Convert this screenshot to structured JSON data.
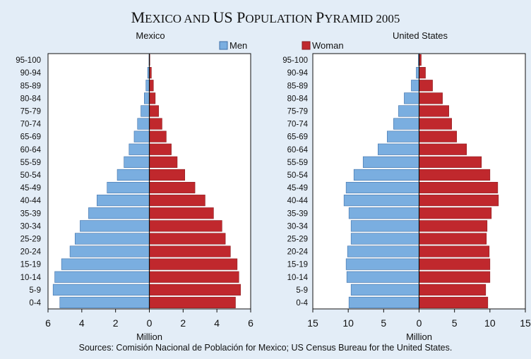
{
  "title": {
    "first_big": "M",
    "first_small": "EXICO AND ",
    "second_big": "US P",
    "second_small": "OPULATION ",
    "third_big": "P",
    "third_small": "YRAMID 2005"
  },
  "source": "Sources: Comisión Nacional de Población for Mexico; US Census Bureau for the United States.",
  "colors": {
    "men": "#7aaee0",
    "men_edge": "#3d6fa8",
    "woman": "#c0282d",
    "woman_edge": "#8a1a1e",
    "background": "#e3edf7",
    "plot_bg": "#ffffff"
  },
  "chart_data": [
    {
      "type": "bar",
      "orientation": "horizontal",
      "layout": "population-pyramid",
      "title": "Mexico",
      "xlabel": "Million",
      "categories": [
        "95-100",
        "90-94",
        "85-89",
        "80-84",
        "75-79",
        "70-74",
        "65-69",
        "60-64",
        "55-59",
        "50-54",
        "45-49",
        "40-44",
        "35-39",
        "30-34",
        "25-29",
        "20-24",
        "15-19",
        "10-14",
        "5-9",
        "0-4"
      ],
      "xlim": [
        -6,
        6
      ],
      "x_ticks": [
        -6,
        -4,
        -2,
        0,
        2,
        4,
        6
      ],
      "x_tick_labels": [
        "6",
        "4",
        "2",
        "0",
        "2",
        "4",
        "6"
      ],
      "series": [
        {
          "name": "Men",
          "values": [
            0.02,
            0.1,
            0.2,
            0.3,
            0.5,
            0.7,
            0.9,
            1.2,
            1.5,
            1.9,
            2.5,
            3.1,
            3.6,
            4.1,
            4.4,
            4.7,
            5.2,
            5.6,
            5.7,
            5.3
          ]
        },
        {
          "name": "Woman",
          "values": [
            0.03,
            0.12,
            0.24,
            0.35,
            0.55,
            0.75,
            1.0,
            1.3,
            1.65,
            2.1,
            2.7,
            3.3,
            3.8,
            4.3,
            4.5,
            4.8,
            5.2,
            5.3,
            5.4,
            5.1
          ]
        }
      ]
    },
    {
      "type": "bar",
      "orientation": "horizontal",
      "layout": "population-pyramid",
      "title": "United States",
      "xlabel": "Million",
      "categories": [
        "95-100",
        "90-94",
        "85-89",
        "80-84",
        "75-79",
        "70-74",
        "65-69",
        "60-64",
        "55-59",
        "50-54",
        "45-49",
        "40-44",
        "35-39",
        "30-34",
        "25-29",
        "20-24",
        "15-19",
        "10-14",
        "5-9",
        "0-4"
      ],
      "xlim": [
        -15,
        15
      ],
      "x_ticks": [
        -15,
        -10,
        -5,
        0,
        5,
        10,
        15
      ],
      "x_tick_labels": [
        "15",
        "10",
        "5",
        "0",
        "5",
        "10",
        "15"
      ],
      "series": [
        {
          "name": "Men",
          "values": [
            0.1,
            0.4,
            1.1,
            2.1,
            2.9,
            3.6,
            4.5,
            5.8,
            7.9,
            9.2,
            10.3,
            10.6,
            9.9,
            9.6,
            9.6,
            10.1,
            10.3,
            10.2,
            9.6,
            9.9
          ]
        },
        {
          "name": "Woman",
          "values": [
            0.3,
            0.9,
            1.9,
            3.3,
            4.2,
            4.6,
            5.3,
            6.7,
            8.8,
            10.0,
            11.1,
            11.2,
            10.2,
            9.6,
            9.5,
            9.9,
            10.0,
            10.0,
            9.4,
            9.7
          ]
        }
      ]
    }
  ],
  "legend": {
    "position": "top-center",
    "items": [
      "Men",
      "Woman"
    ]
  }
}
